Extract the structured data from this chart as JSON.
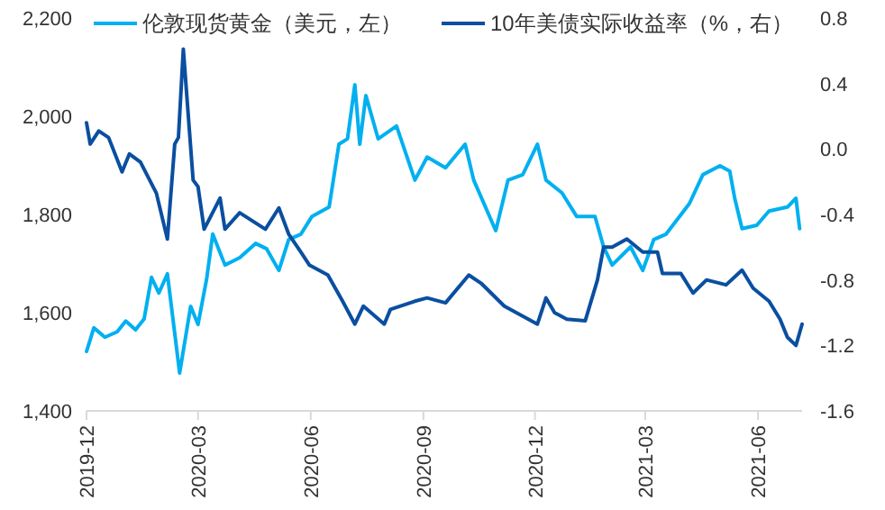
{
  "chart_data": {
    "type": "line",
    "legend": "top",
    "grid": false,
    "marker": "none",
    "line_style": "solid",
    "xlim": [
      "2019-12-01",
      "2021-07-07"
    ],
    "xticks": [
      "2019-12",
      "2020-03",
      "2020-06",
      "2020-09",
      "2020-12",
      "2021-03",
      "2021-06"
    ],
    "ylim": [
      1400,
      2200
    ],
    "yticks": [
      {
        "value": 1400,
        "label": "1,400"
      },
      {
        "value": 1600,
        "label": "1,600"
      },
      {
        "value": 1800,
        "label": "1,800"
      },
      {
        "value": 2000,
        "label": "2,000"
      },
      {
        "value": 2200,
        "label": "2,200"
      }
    ],
    "y2lim": [
      -1.6,
      0.8
    ],
    "y2ticks": [
      {
        "value": -1.6,
        "label": "-1.6"
      },
      {
        "value": -1.2,
        "label": "-1.2"
      },
      {
        "value": -0.8,
        "label": "-0.8"
      },
      {
        "value": -0.4,
        "label": "-0.4"
      },
      {
        "value": 0,
        "label": "0.0"
      },
      {
        "value": 0.4,
        "label": "0.4"
      },
      {
        "value": 0.8,
        "label": "0.8"
      }
    ],
    "series": [
      {
        "name": "伦敦现货黄金（美元，左）",
        "color": "#00b0f0",
        "x": [
          "2019-12-01",
          "2019-12-07",
          "2019-12-16",
          "2019-12-26",
          "2020-01-02",
          "2020-01-10",
          "2020-01-17",
          "2020-01-23",
          "2020-01-29",
          "2020-02-05",
          "2020-02-15",
          "2020-02-24",
          "2020-03-01",
          "2020-03-08",
          "2020-03-13",
          "2020-03-23",
          "2020-04-04",
          "2020-04-17",
          "2020-04-26",
          "2020-05-06",
          "2020-05-14",
          "2020-05-24",
          "2020-06-02",
          "2020-06-16",
          "2020-06-24",
          "2020-07-01",
          "2020-07-07",
          "2020-07-11",
          "2020-07-16",
          "2020-07-26",
          "2020-08-10",
          "2020-08-25",
          "2020-09-04",
          "2020-09-19",
          "2020-10-05",
          "2020-10-12",
          "2020-10-30",
          "2020-11-09",
          "2020-11-21",
          "2020-12-03",
          "2020-12-10",
          "2020-12-23",
          "2021-01-04",
          "2021-01-19",
          "2021-01-26",
          "2021-02-02",
          "2021-02-17",
          "2021-02-27",
          "2021-03-08",
          "2021-03-18",
          "2021-03-29",
          "2021-04-06",
          "2021-04-17",
          "2021-05-01",
          "2021-05-09",
          "2021-05-13",
          "2021-05-19",
          "2021-05-31",
          "2021-06-10",
          "2021-06-25",
          "2021-07-02",
          "2021-07-05"
        ],
        "values": [
          1521,
          1569,
          1550,
          1561,
          1583,
          1565,
          1587,
          1672,
          1640,
          1679,
          1477,
          1613,
          1576,
          1668,
          1760,
          1697,
          1712,
          1741,
          1730,
          1686,
          1749,
          1760,
          1796,
          1815,
          1943,
          1954,
          2064,
          1943,
          2042,
          1954,
          1980,
          1870,
          1917,
          1895,
          1943,
          1870,
          1767,
          1870,
          1881,
          1943,
          1870,
          1844,
          1796,
          1796,
          1734,
          1697,
          1734,
          1686,
          1749,
          1760,
          1796,
          1822,
          1881,
          1899,
          1888,
          1833,
          1771,
          1778,
          1807,
          1815,
          1833,
          1771
        ]
      },
      {
        "name": "10年美债实际收益率（%，右）",
        "color": "#0a4fa0",
        "axis": "y2",
        "x": [
          "2019-12-01",
          "2019-12-04",
          "2019-12-11",
          "2019-12-19",
          "2019-12-30",
          "2020-01-05",
          "2020-01-14",
          "2020-01-27",
          "2020-02-05",
          "2020-02-11",
          "2020-02-14",
          "2020-02-18",
          "2020-02-23",
          "2020-02-26",
          "2020-03-01",
          "2020-03-06",
          "2020-03-19",
          "2020-03-23",
          "2020-04-04",
          "2020-04-25",
          "2020-05-06",
          "2020-05-14",
          "2020-05-24",
          "2020-05-31",
          "2020-06-15",
          "2020-06-27",
          "2020-07-07",
          "2020-07-14",
          "2020-07-31",
          "2020-08-05",
          "2020-08-25",
          "2020-09-04",
          "2020-09-19",
          "2020-10-08",
          "2020-10-18",
          "2020-11-06",
          "2020-12-03",
          "2020-12-10",
          "2020-12-17",
          "2020-12-27",
          "2021-01-11",
          "2021-01-21",
          "2021-01-26",
          "2021-02-02",
          "2021-02-14",
          "2021-02-27",
          "2021-03-11",
          "2021-03-15",
          "2021-03-30",
          "2021-04-09",
          "2021-04-20",
          "2021-05-06",
          "2021-05-19",
          "2021-05-28",
          "2021-06-10",
          "2021-06-19",
          "2021-06-25",
          "2021-07-02",
          "2021-07-07"
        ],
        "values": [
          0.16,
          0.03,
          0.11,
          0.07,
          -0.14,
          -0.03,
          -0.08,
          -0.27,
          -0.55,
          0.03,
          0.07,
          0.61,
          0.11,
          -0.19,
          -0.23,
          -0.49,
          -0.3,
          -0.49,
          -0.39,
          -0.49,
          -0.36,
          -0.52,
          -0.63,
          -0.71,
          -0.77,
          -0.93,
          -1.07,
          -0.96,
          -1.07,
          -0.98,
          -0.93,
          -0.91,
          -0.94,
          -0.77,
          -0.82,
          -0.96,
          -1.07,
          -0.91,
          -1.0,
          -1.04,
          -1.05,
          -0.8,
          -0.6,
          -0.6,
          -0.55,
          -0.63,
          -0.63,
          -0.76,
          -0.76,
          -0.88,
          -0.8,
          -0.83,
          -0.74,
          -0.85,
          -0.93,
          -1.04,
          -1.15,
          -1.2,
          -1.07
        ]
      }
    ]
  }
}
